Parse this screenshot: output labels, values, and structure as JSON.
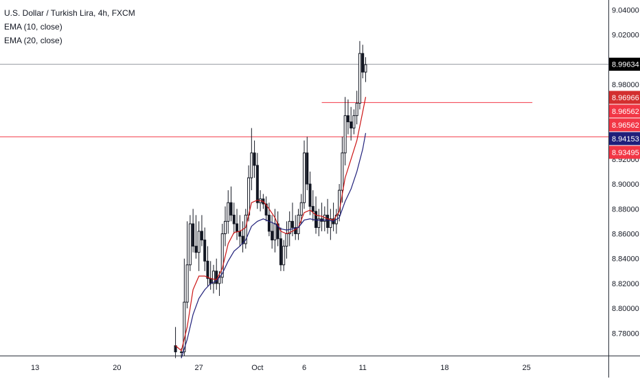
{
  "legend": {
    "title": "U.S. Dollar / Turkish Lira, 4h, FXCM",
    "ema10": "EMA (10, close)",
    "ema20": "EMA (20, close)"
  },
  "colors": {
    "candle": "#131722",
    "ema10": "#cc1414",
    "ema20": "#1f1f7a",
    "hline": "#f23645",
    "crosshair": "#9598a1",
    "axis_text": "#131722",
    "axis_line": "#2a2e39"
  },
  "chart_data": {
    "type": "candlestick",
    "ylim": [
      8.762,
      9.048
    ],
    "x_range": [
      0,
      104
    ],
    "y_ticks": [
      9.04,
      9.02,
      8.98,
      8.92,
      8.9,
      8.88,
      8.86,
      8.84,
      8.82,
      8.8,
      8.78
    ],
    "y_tick_labels": [
      "9.04000",
      "9.02000",
      "8.98000",
      "8.92000",
      "8.90000",
      "8.88000",
      "8.86000",
      "8.84000",
      "8.82000",
      "8.80000",
      "8.78000"
    ],
    "x_ticks": [
      {
        "label": "13",
        "x": 6
      },
      {
        "label": "20",
        "x": 20
      },
      {
        "label": "27",
        "x": 34
      },
      {
        "label": "Oct",
        "x": 44
      },
      {
        "label": "6",
        "x": 52
      },
      {
        "label": "11",
        "x": 62
      },
      {
        "label": "18",
        "x": 76
      },
      {
        "label": "25",
        "x": 90
      }
    ],
    "price_labels": [
      {
        "text": "8.99634",
        "value": 8.99634,
        "bg": "#000000"
      },
      {
        "text": "8.96966",
        "value": 8.96966,
        "bg": "#d32f2f"
      },
      {
        "text": "8.96562",
        "value": 8.96562,
        "bg": "#f23645"
      },
      {
        "text": "8.96562",
        "value": 8.96562,
        "bg": "#f23645"
      },
      {
        "text": "8.94153",
        "value": 8.94153,
        "bg": "#1f1f7a"
      },
      {
        "text": "8.93495",
        "value": 8.93495,
        "bg": "#f23645"
      }
    ],
    "horizontal_lines": [
      {
        "value": 8.938,
        "x_start": 0,
        "x_end": 104
      },
      {
        "value": 8.9655,
        "x_start": 55,
        "x_end": 91
      }
    ],
    "crosshair_value": 8.99634,
    "candles": [
      [
        30,
        8.77,
        8.785,
        8.76,
        8.765
      ],
      [
        31,
        8.765,
        8.768,
        8.76,
        8.765
      ],
      [
        31.5,
        8.765,
        8.84,
        8.762,
        8.805
      ],
      [
        32,
        8.805,
        8.87,
        8.8,
        8.835
      ],
      [
        32.5,
        8.835,
        8.875,
        8.83,
        8.868
      ],
      [
        33,
        8.868,
        8.88,
        8.845,
        8.85
      ],
      [
        33.5,
        8.85,
        8.875,
        8.84,
        8.845
      ],
      [
        34,
        8.845,
        8.87,
        8.83,
        8.862
      ],
      [
        34.5,
        8.862,
        8.875,
        8.85,
        8.855
      ],
      [
        35,
        8.855,
        8.865,
        8.83,
        8.838
      ],
      [
        35.5,
        8.838,
        8.85,
        8.818,
        8.824
      ],
      [
        36,
        8.824,
        8.838,
        8.815,
        8.82
      ],
      [
        36.5,
        8.82,
        8.835,
        8.812,
        8.83
      ],
      [
        37,
        8.83,
        8.84,
        8.815,
        8.82
      ],
      [
        37.5,
        8.82,
        8.83,
        8.81,
        8.825
      ],
      [
        38,
        8.825,
        8.868,
        8.82,
        8.86
      ],
      [
        38.5,
        8.86,
        8.882,
        8.85,
        8.87
      ],
      [
        39,
        8.87,
        8.895,
        8.86,
        8.885
      ],
      [
        39.5,
        8.885,
        8.898,
        8.87,
        8.875
      ],
      [
        40,
        8.875,
        8.885,
        8.86,
        8.868
      ],
      [
        40.5,
        8.868,
        8.88,
        8.855,
        8.862
      ],
      [
        41,
        8.862,
        8.875,
        8.85,
        8.858
      ],
      [
        41.5,
        8.858,
        8.87,
        8.845,
        8.852
      ],
      [
        42,
        8.852,
        8.88,
        8.848,
        8.875
      ],
      [
        42.5,
        8.875,
        8.915,
        8.87,
        8.905
      ],
      [
        43,
        8.905,
        8.945,
        8.895,
        8.925
      ],
      [
        43.5,
        8.925,
        8.935,
        8.905,
        8.915
      ],
      [
        44,
        8.915,
        8.925,
        8.88,
        8.885
      ],
      [
        44.5,
        8.885,
        8.895,
        8.878,
        8.888
      ],
      [
        45,
        8.888,
        8.892,
        8.88,
        8.884
      ],
      [
        45.5,
        8.884,
        8.89,
        8.87,
        8.875
      ],
      [
        46,
        8.875,
        8.885,
        8.858,
        8.862
      ],
      [
        46.5,
        8.862,
        8.875,
        8.848,
        8.855
      ],
      [
        47,
        8.855,
        8.88,
        8.845,
        8.868
      ],
      [
        47.5,
        8.868,
        8.878,
        8.85,
        8.856
      ],
      [
        48,
        8.856,
        8.865,
        8.83,
        8.835
      ],
      [
        48.5,
        8.835,
        8.855,
        8.83,
        8.85
      ],
      [
        49,
        8.85,
        8.87,
        8.84,
        8.86
      ],
      [
        49.5,
        8.86,
        8.878,
        8.85,
        8.87
      ],
      [
        50,
        8.87,
        8.885,
        8.858,
        8.865
      ],
      [
        50.5,
        8.865,
        8.875,
        8.855,
        8.86
      ],
      [
        51,
        8.86,
        8.88,
        8.855,
        8.875
      ],
      [
        51.5,
        8.875,
        8.892,
        8.868,
        8.885
      ],
      [
        52,
        8.885,
        8.935,
        8.88,
        8.925
      ],
      [
        52.5,
        8.925,
        8.938,
        8.895,
        8.9
      ],
      [
        53,
        8.9,
        8.91,
        8.875,
        8.882
      ],
      [
        53.5,
        8.882,
        8.895,
        8.87,
        8.878
      ],
      [
        54,
        8.878,
        8.89,
        8.86,
        8.865
      ],
      [
        54.5,
        8.865,
        8.88,
        8.858,
        8.872
      ],
      [
        55,
        8.872,
        8.885,
        8.862,
        8.87
      ],
      [
        55.5,
        8.87,
        8.882,
        8.862,
        8.875
      ],
      [
        56,
        8.875,
        8.888,
        8.86,
        8.865
      ],
      [
        56.5,
        8.865,
        8.88,
        8.855,
        8.872
      ],
      [
        57,
        8.872,
        8.885,
        8.862,
        8.868
      ],
      [
        57.5,
        8.868,
        8.88,
        8.86,
        8.875
      ],
      [
        58,
        8.875,
        8.9,
        8.87,
        8.895
      ],
      [
        58.5,
        8.895,
        8.938,
        8.885,
        8.925
      ],
      [
        59,
        8.925,
        8.97,
        8.915,
        8.955
      ],
      [
        59.5,
        8.955,
        8.968,
        8.94,
        8.95
      ],
      [
        60,
        8.95,
        8.962,
        8.935,
        8.945
      ],
      [
        60.5,
        8.945,
        8.96,
        8.94,
        8.955
      ],
      [
        61,
        8.955,
        8.975,
        8.948,
        8.965
      ],
      [
        61.5,
        8.965,
        9.015,
        8.96,
        9.005
      ],
      [
        62,
        9.005,
        9.012,
        8.985,
        8.99
      ],
      [
        62.5,
        8.99,
        9.002,
        8.982,
        8.996
      ]
    ],
    "ema10": [
      [
        30,
        8.77
      ],
      [
        31,
        8.766
      ],
      [
        32,
        8.785
      ],
      [
        33,
        8.815
      ],
      [
        34,
        8.826
      ],
      [
        35,
        8.826
      ],
      [
        36,
        8.824
      ],
      [
        37,
        8.823
      ],
      [
        38,
        8.832
      ],
      [
        39,
        8.852
      ],
      [
        40,
        8.861
      ],
      [
        41,
        8.862
      ],
      [
        42,
        8.865
      ],
      [
        43,
        8.885
      ],
      [
        44,
        8.887
      ],
      [
        45,
        8.886
      ],
      [
        46,
        8.88
      ],
      [
        47,
        8.873
      ],
      [
        48,
        8.862
      ],
      [
        49,
        8.86
      ],
      [
        50,
        8.862
      ],
      [
        51,
        8.865
      ],
      [
        52,
        8.877
      ],
      [
        53,
        8.879
      ],
      [
        54,
        8.875
      ],
      [
        55,
        8.874
      ],
      [
        56,
        8.872
      ],
      [
        57,
        8.871
      ],
      [
        58,
        8.878
      ],
      [
        59,
        8.905
      ],
      [
        60,
        8.92
      ],
      [
        61,
        8.935
      ],
      [
        62,
        8.958
      ],
      [
        62.5,
        8.97
      ]
    ],
    "ema20": [
      [
        31,
        8.76
      ],
      [
        32,
        8.775
      ],
      [
        33,
        8.795
      ],
      [
        34,
        8.808
      ],
      [
        35,
        8.815
      ],
      [
        36,
        8.82
      ],
      [
        37,
        8.822
      ],
      [
        38,
        8.828
      ],
      [
        39,
        8.838
      ],
      [
        40,
        8.846
      ],
      [
        41,
        8.85
      ],
      [
        42,
        8.855
      ],
      [
        43,
        8.866
      ],
      [
        44,
        8.87
      ],
      [
        45,
        8.872
      ],
      [
        46,
        8.87
      ],
      [
        47,
        8.868
      ],
      [
        48,
        8.864
      ],
      [
        49,
        8.863
      ],
      [
        50,
        8.864
      ],
      [
        51,
        8.865
      ],
      [
        52,
        8.871
      ],
      [
        53,
        8.872
      ],
      [
        54,
        8.871
      ],
      [
        55,
        8.871
      ],
      [
        56,
        8.871
      ],
      [
        57,
        8.87
      ],
      [
        58,
        8.873
      ],
      [
        59,
        8.886
      ],
      [
        60,
        8.896
      ],
      [
        61,
        8.91
      ],
      [
        62,
        8.928
      ],
      [
        62.5,
        8.941
      ]
    ]
  }
}
